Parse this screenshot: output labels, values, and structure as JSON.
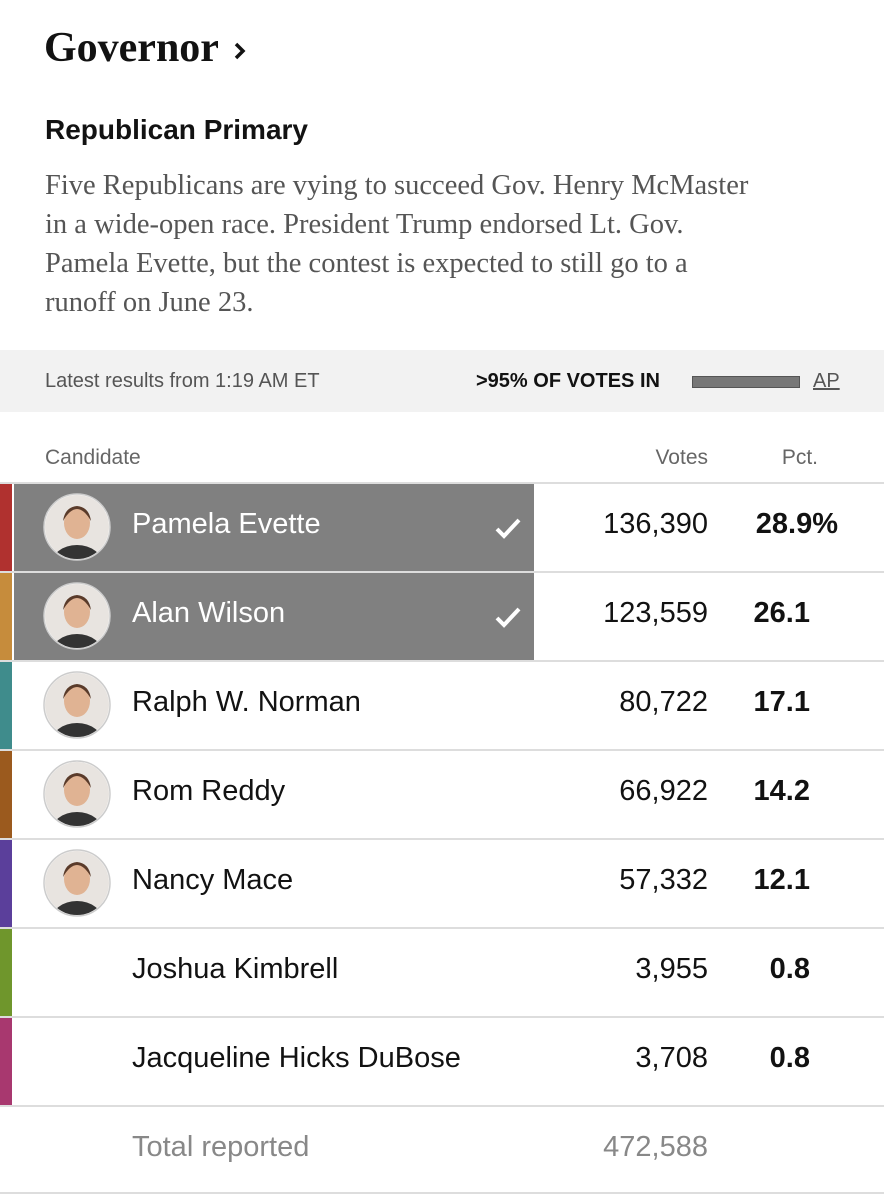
{
  "header": {
    "title": "Governor",
    "subtitle": "Republican Primary",
    "description": "Five Republicans are vying to succeed Gov. Henry McMaster in a wide-open race. President Trump endorsed Lt. Gov. Pamela Evette, but the contest is expected to still go to a runoff on June 23."
  },
  "status": {
    "updated": "Latest results from 1:19 AM ET",
    "reporting": ">95% OF VOTES IN",
    "source": "AP"
  },
  "table": {
    "columns": [
      "Candidate",
      "Votes",
      "Pct."
    ],
    "rows": [
      {
        "name": "Pamela Evette",
        "votes": "136,390",
        "pct": "28.9%",
        "advanced": true,
        "photo": true,
        "color": "#b0312f"
      },
      {
        "name": "Alan Wilson",
        "votes": "123,559",
        "pct": "26.1",
        "advanced": true,
        "photo": true,
        "color": "#c68c3c"
      },
      {
        "name": "Ralph W. Norman",
        "votes": "80,722",
        "pct": "17.1",
        "advanced": false,
        "photo": true,
        "color": "#3f8c8c"
      },
      {
        "name": "Rom Reddy",
        "votes": "66,922",
        "pct": "14.2",
        "advanced": false,
        "photo": true,
        "color": "#9b5a1e"
      },
      {
        "name": "Nancy Mace",
        "votes": "57,332",
        "pct": "12.1",
        "advanced": false,
        "photo": true,
        "color": "#5b3f9b"
      },
      {
        "name": "Joshua Kimbrell",
        "votes": "3,955",
        "pct": "0.8",
        "advanced": false,
        "photo": false,
        "color": "#6f962c"
      },
      {
        "name": "Jacqueline Hicks DuBose",
        "votes": "3,708",
        "pct": "0.8",
        "advanced": false,
        "photo": false,
        "color": "#a8386f"
      }
    ],
    "total": {
      "label": "Total reported",
      "votes": "472,588"
    }
  }
}
